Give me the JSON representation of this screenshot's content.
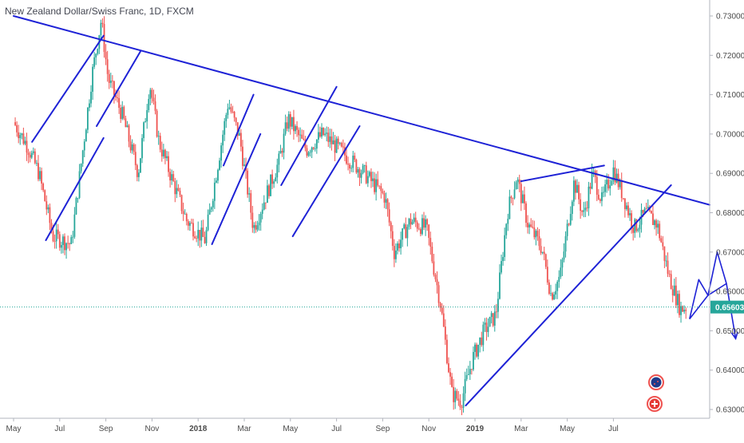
{
  "chart_data": {
    "type": "candlestick",
    "title": "New Zealand Dollar/Swiss Franc, 1D, FXCM",
    "x_labels": [
      "May",
      "Jul",
      "Sep",
      "Nov",
      "2018",
      "Mar",
      "May",
      "Jul",
      "Sep",
      "Nov",
      "2019",
      "Mar",
      "May",
      "Jul"
    ],
    "y_ticks": [
      "0.73000",
      "0.72000",
      "0.71000",
      "0.70000",
      "0.69000",
      "0.68000",
      "0.67000",
      "0.66000",
      "0.65000",
      "0.64000",
      "0.63000"
    ],
    "ylim": [
      0.6285,
      0.7335
    ],
    "current_price": "0.65603",
    "colors": {
      "up": "#26a69a",
      "down": "#ef5350",
      "drawing": "#1e22d6",
      "price_line": "#26a69a"
    },
    "key_prices": [
      {
        "t": 0.0,
        "p": 0.703
      },
      {
        "t": 0.6,
        "p": 0.697
      },
      {
        "t": 1.1,
        "p": 0.69
      },
      {
        "t": 1.7,
        "p": 0.674
      },
      {
        "t": 2.5,
        "p": 0.672
      },
      {
        "t": 3.4,
        "p": 0.715
      },
      {
        "t": 3.8,
        "p": 0.729
      },
      {
        "t": 4.1,
        "p": 0.714
      },
      {
        "t": 4.7,
        "p": 0.705
      },
      {
        "t": 5.4,
        "p": 0.69
      },
      {
        "t": 5.9,
        "p": 0.713
      },
      {
        "t": 6.3,
        "p": 0.698
      },
      {
        "t": 7.5,
        "p": 0.678
      },
      {
        "t": 8.3,
        "p": 0.673
      },
      {
        "t": 9.3,
        "p": 0.708
      },
      {
        "t": 9.8,
        "p": 0.699
      },
      {
        "t": 10.4,
        "p": 0.676
      },
      {
        "t": 11.5,
        "p": 0.693
      },
      {
        "t": 11.9,
        "p": 0.704
      },
      {
        "t": 12.7,
        "p": 0.696
      },
      {
        "t": 13.4,
        "p": 0.7
      },
      {
        "t": 14.3,
        "p": 0.695
      },
      {
        "t": 15.2,
        "p": 0.69
      },
      {
        "t": 16.1,
        "p": 0.684
      },
      {
        "t": 16.5,
        "p": 0.67
      },
      {
        "t": 17.2,
        "p": 0.678
      },
      {
        "t": 17.9,
        "p": 0.676
      },
      {
        "t": 18.5,
        "p": 0.657
      },
      {
        "t": 19.0,
        "p": 0.634
      },
      {
        "t": 19.4,
        "p": 0.632
      },
      {
        "t": 19.9,
        "p": 0.643
      },
      {
        "t": 20.4,
        "p": 0.65
      },
      {
        "t": 20.9,
        "p": 0.654
      },
      {
        "t": 21.4,
        "p": 0.68
      },
      {
        "t": 21.8,
        "p": 0.689
      },
      {
        "t": 22.3,
        "p": 0.677
      },
      {
        "t": 22.9,
        "p": 0.671
      },
      {
        "t": 23.3,
        "p": 0.659
      },
      {
        "t": 23.7,
        "p": 0.664
      },
      {
        "t": 24.3,
        "p": 0.688
      },
      {
        "t": 24.7,
        "p": 0.679
      },
      {
        "t": 25.1,
        "p": 0.69
      },
      {
        "t": 25.5,
        "p": 0.683
      },
      {
        "t": 26.0,
        "p": 0.691
      },
      {
        "t": 26.5,
        "p": 0.683
      },
      {
        "t": 26.9,
        "p": 0.676
      },
      {
        "t": 27.4,
        "p": 0.68
      },
      {
        "t": 27.9,
        "p": 0.677
      },
      {
        "t": 28.4,
        "p": 0.664
      },
      {
        "t": 28.9,
        "p": 0.6555
      },
      {
        "t": 29.2,
        "p": 0.6562
      }
    ],
    "drawings": [
      {
        "kind": "line",
        "from": {
          "t": 0.0,
          "p": 0.73
        },
        "to": {
          "t": 32.0,
          "p": 0.682
        }
      },
      {
        "kind": "line",
        "from": {
          "t": 0.8,
          "p": 0.698
        },
        "to": {
          "t": 3.9,
          "p": 0.725
        }
      },
      {
        "kind": "line",
        "from": {
          "t": 1.4,
          "p": 0.673
        },
        "to": {
          "t": 3.9,
          "p": 0.699
        }
      },
      {
        "kind": "line",
        "from": {
          "t": 3.6,
          "p": 0.702
        },
        "to": {
          "t": 5.5,
          "p": 0.721
        }
      },
      {
        "kind": "line",
        "from": {
          "t": 9.1,
          "p": 0.692
        },
        "to": {
          "t": 10.4,
          "p": 0.71
        }
      },
      {
        "kind": "line",
        "from": {
          "t": 8.6,
          "p": 0.672
        },
        "to": {
          "t": 10.7,
          "p": 0.7
        }
      },
      {
        "kind": "line",
        "from": {
          "t": 11.6,
          "p": 0.687
        },
        "to": {
          "t": 14.0,
          "p": 0.712
        }
      },
      {
        "kind": "line",
        "from": {
          "t": 12.1,
          "p": 0.674
        },
        "to": {
          "t": 15.0,
          "p": 0.702
        }
      },
      {
        "kind": "line",
        "from": {
          "t": 19.6,
          "p": 0.631
        },
        "to": {
          "t": 28.5,
          "p": 0.687
        }
      },
      {
        "kind": "line",
        "from": {
          "t": 22.0,
          "p": 0.688
        },
        "to": {
          "t": 25.6,
          "p": 0.692
        }
      },
      {
        "kind": "polyline",
        "points": [
          {
            "t": 29.3,
            "p": 0.653
          },
          {
            "t": 29.7,
            "p": 0.663
          },
          {
            "t": 30.1,
            "p": 0.659
          },
          {
            "t": 30.5,
            "p": 0.67
          },
          {
            "t": 30.9,
            "p": 0.662
          },
          {
            "t": 31.3,
            "p": 0.648
          }
        ]
      },
      {
        "kind": "polyline",
        "points": [
          {
            "t": 29.3,
            "p": 0.653
          },
          {
            "t": 30.1,
            "p": 0.659
          },
          {
            "t": 30.9,
            "p": 0.662
          }
        ]
      }
    ],
    "grid": false,
    "legend": "none"
  }
}
